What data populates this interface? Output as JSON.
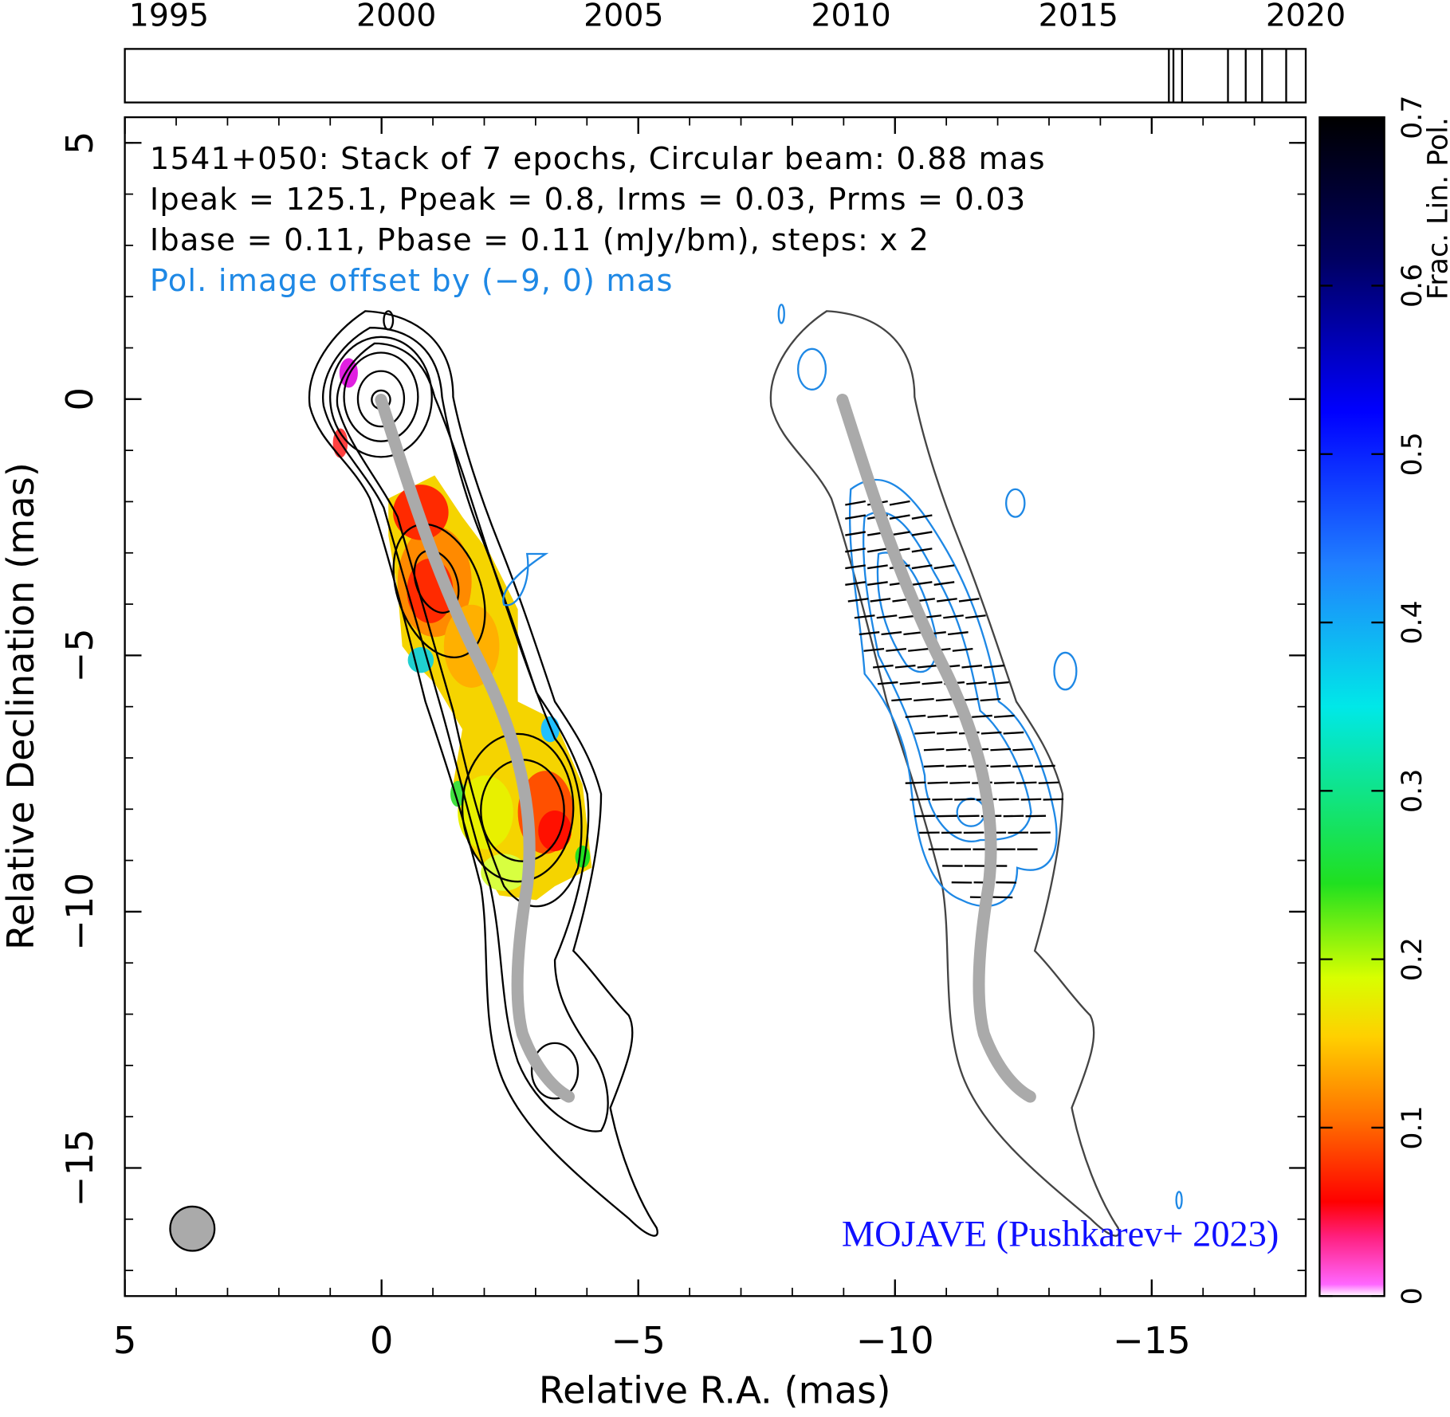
{
  "chart_data": {
    "type": "contour-map",
    "info_lines": [
      "1541+050: Stack of 7 epochs, Circular beam: 0.88 mas",
      "Ipeak = 125.1, Ppeak = 0.8, Irms = 0.03, Prms = 0.03",
      "Ibase = 0.11, Pbase = 0.11 (mJy/bm), steps: x 2",
      "Pol. image offset by (−9, 0) mas"
    ],
    "credit": "MOJAVE (Pushkarev+ 2023)",
    "xlabel": "Relative R.A. (mas)",
    "ylabel": "Relative Declination (mas)",
    "xlim": [
      5,
      -18
    ],
    "ylim": [
      -17.5,
      5.5
    ],
    "xticks": [
      5,
      0,
      {
        "value": -5,
        "label": "−5"
      },
      {
        "value": -10,
        "label": "−10"
      },
      {
        "value": -15,
        "label": "−15"
      }
    ],
    "yticks": [
      5,
      0,
      {
        "value": -5,
        "label": "−5"
      },
      {
        "value": -10,
        "label": "−10"
      },
      {
        "value": -15,
        "label": "−15"
      }
    ],
    "colorbar": {
      "label": "Frac. Lin. Pol.",
      "lim": [
        0,
        0.7
      ],
      "ticks": [
        0,
        0.1,
        0.2,
        0.3,
        0.4,
        0.5,
        0.6,
        0.7
      ]
    },
    "timeline": {
      "xlim": [
        1994.03,
        2020
      ],
      "xticks": [
        1995,
        2000,
        2005,
        2010,
        2015,
        2020
      ],
      "epochs": [
        2016.99,
        2017.09,
        2017.28,
        2018.29,
        2018.68,
        2019.04,
        2019.57
      ]
    }
  }
}
